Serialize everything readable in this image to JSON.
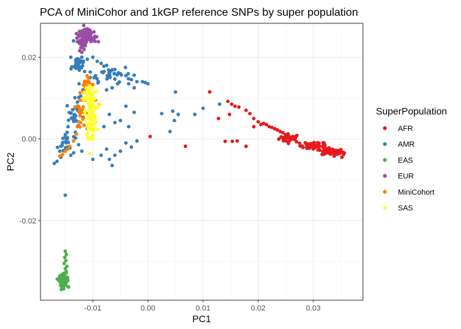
{
  "chart_data": {
    "type": "scatter",
    "title": "PCA of MiniCohor and 1kGP reference SNPs by super population",
    "xlabel": "PC1",
    "ylabel": "PC2",
    "xlim": [
      -0.0195,
      0.039
    ],
    "ylim": [
      -0.0395,
      0.0283
    ],
    "x_ticks": [
      -0.01,
      0.0,
      0.01,
      0.02,
      0.03
    ],
    "x_tick_labels": [
      "-0.01",
      "0.00",
      "0.01",
      "0.02",
      "0.03"
    ],
    "y_ticks": [
      -0.02,
      0.0,
      0.02
    ],
    "y_tick_labels": [
      "-0.02",
      "0.00",
      "0.02"
    ],
    "grid": true,
    "legend": {
      "title": "SuperPopulation",
      "position": "right"
    },
    "series": [
      {
        "name": "AFR",
        "color": "#e41a1c",
        "clusters": [
          {
            "cx": 0.0258,
            "cy": 0.0002,
            "sx": 0.001,
            "sy": 0.0005,
            "n": 30
          },
          {
            "cx": 0.03,
            "cy": -0.0017,
            "sx": 0.0012,
            "sy": 0.0005,
            "n": 40
          },
          {
            "cx": 0.0335,
            "cy": -0.0032,
            "sx": 0.001,
            "sy": 0.0004,
            "n": 60
          }
        ],
        "points": [
          [
            0.0112,
            0.0115
          ],
          [
            0.0145,
            0.0092
          ],
          [
            0.0152,
            0.0085
          ],
          [
            0.0158,
            0.008
          ],
          [
            0.0165,
            0.0078
          ],
          [
            0.0148,
            0.006
          ],
          [
            0.0178,
            0.007
          ],
          [
            0.0185,
            0.0062
          ],
          [
            0.0192,
            0.005
          ],
          [
            0.02,
            0.0042
          ],
          [
            0.021,
            0.0038
          ],
          [
            0.0215,
            0.0035
          ],
          [
            0.022,
            0.003
          ],
          [
            0.023,
            0.0025
          ],
          [
            0.0235,
            0.0022
          ],
          [
            0.024,
            0.0018
          ],
          [
            0.0245,
            0.0015
          ],
          [
            0.025,
            0.001
          ],
          [
            0.0192,
            0.003
          ],
          [
            0.0205,
            0.0035
          ],
          [
            0.0225,
            0.0028
          ],
          [
            0.0178,
            -0.0018
          ],
          [
            0.014,
            -0.0006
          ],
          [
            0.0153,
            -0.0006
          ],
          [
            0.0162,
            -0.0005
          ],
          [
            0.0068,
            -0.0018
          ],
          [
            0.0004,
            0.0006
          ],
          [
            0.0128,
            0.005
          ],
          [
            0.0338,
            -0.0042
          ],
          [
            0.0348,
            -0.003
          ],
          [
            0.0355,
            -0.0038
          ],
          [
            0.0352,
            -0.0045
          ]
        ]
      },
      {
        "name": "AMR",
        "color": "#377eb8",
        "clusters": [
          {
            "cx": -0.0125,
            "cy": 0.0185,
            "sx": 0.0006,
            "sy": 0.001,
            "n": 30
          },
          {
            "cx": -0.007,
            "cy": 0.016,
            "sx": 0.002,
            "sy": 0.001,
            "n": 30
          },
          {
            "cx": -0.0132,
            "cy": 0.006,
            "sx": 0.0008,
            "sy": 0.0018,
            "n": 25
          },
          {
            "cx": -0.0148,
            "cy": -0.001,
            "sx": 0.0008,
            "sy": 0.0015,
            "n": 25
          }
        ],
        "points": [
          [
            -0.012,
            0.02
          ],
          [
            -0.011,
            0.0195
          ],
          [
            -0.01,
            0.02
          ],
          [
            -0.0092,
            0.019
          ],
          [
            -0.0085,
            0.0185
          ],
          [
            -0.008,
            0.0178
          ],
          [
            -0.0075,
            0.018
          ],
          [
            -0.006,
            0.017
          ],
          [
            -0.005,
            0.016
          ],
          [
            -0.004,
            0.0155
          ],
          [
            -0.003,
            0.0145
          ],
          [
            -0.002,
            0.014
          ],
          [
            -0.001,
            0.014
          ],
          [
            -0.0005,
            0.0138
          ],
          [
            0.0,
            0.0135
          ],
          [
            -0.0035,
            0.0135
          ],
          [
            -0.0025,
            0.0125
          ],
          [
            -0.0055,
            0.0135
          ],
          [
            -0.0065,
            0.0125
          ],
          [
            -0.0075,
            0.012
          ],
          [
            -0.009,
            0.014
          ],
          [
            -0.0095,
            0.0155
          ],
          [
            -0.0105,
            0.015
          ],
          [
            -0.0115,
            0.0165
          ],
          [
            -0.0125,
            0.0135
          ],
          [
            -0.0118,
            0.012
          ],
          [
            -0.0122,
            0.0105
          ],
          [
            -0.0128,
            0.009
          ],
          [
            -0.0138,
            0.005
          ],
          [
            -0.0145,
            0.003
          ],
          [
            -0.015,
            0.001
          ],
          [
            -0.0155,
            -0.001
          ],
          [
            -0.016,
            -0.003
          ],
          [
            -0.0165,
            -0.0055
          ],
          [
            -0.017,
            -0.006
          ],
          [
            -0.0158,
            -0.0045
          ],
          [
            -0.014,
            -0.004
          ],
          [
            -0.012,
            -0.003
          ],
          [
            -0.01,
            -0.005
          ],
          [
            -0.0085,
            -0.004
          ],
          [
            -0.0075,
            -0.0025
          ],
          [
            -0.007,
            -0.005
          ],
          [
            -0.0065,
            -0.0065
          ],
          [
            -0.006,
            -0.004
          ],
          [
            -0.005,
            -0.003
          ],
          [
            -0.004,
            -0.001
          ],
          [
            -0.003,
            -0.002
          ],
          [
            -0.002,
            -0.0005
          ],
          [
            -0.006,
            0.004
          ],
          [
            -0.005,
            0.0045
          ],
          [
            -0.0035,
            0.003
          ],
          [
            -0.0025,
            0.0065
          ],
          [
            -0.004,
            0.008
          ],
          [
            -0.007,
            0.006
          ],
          [
            -0.008,
            0.003
          ],
          [
            0.005,
            0.0115
          ],
          [
            0.0045,
            0.0068
          ],
          [
            0.0055,
            0.006
          ],
          [
            0.0048,
            0.0045
          ],
          [
            0.004,
            0.0018
          ],
          [
            0.0025,
            0.0062
          ],
          [
            0.0085,
            0.006
          ],
          [
            0.01,
            0.0075
          ],
          [
            0.013,
            0.0085
          ],
          [
            -0.015,
            -0.0138
          ],
          [
            -0.0135,
            0.024
          ],
          [
            -0.014,
            0.02
          ],
          [
            -0.013,
            0.0175
          ]
        ]
      },
      {
        "name": "EAS",
        "color": "#4daf4a",
        "clusters": [
          {
            "cx": -0.0153,
            "cy": -0.0345,
            "sx": 0.0004,
            "sy": 0.0007,
            "n": 80
          }
        ],
        "points": [
          [
            -0.015,
            -0.0275
          ],
          [
            -0.0148,
            -0.0283
          ],
          [
            -0.0151,
            -0.029
          ],
          [
            -0.0149,
            -0.0298
          ],
          [
            -0.0152,
            -0.0305
          ],
          [
            -0.0147,
            -0.0312
          ],
          [
            -0.015,
            -0.0318
          ],
          [
            -0.0148,
            -0.0325
          ],
          [
            -0.0158,
            -0.036
          ],
          [
            -0.0145,
            -0.0362
          ],
          [
            -0.0153,
            -0.0367
          ],
          [
            -0.016,
            -0.034
          ]
        ]
      },
      {
        "name": "EUR",
        "color": "#984ea3",
        "clusters": [
          {
            "cx": -0.0113,
            "cy": 0.0258,
            "sx": 0.0008,
            "sy": 0.0006,
            "n": 60
          },
          {
            "cx": -0.0118,
            "cy": 0.0232,
            "sx": 0.0004,
            "sy": 0.0006,
            "n": 30
          },
          {
            "cx": -0.0105,
            "cy": 0.0245,
            "sx": 0.0006,
            "sy": 0.0004,
            "n": 20
          }
        ],
        "points": [
          [
            -0.0093,
            0.025
          ],
          [
            -0.009,
            0.0238
          ],
          [
            -0.0124,
            0.0216
          ],
          [
            -0.012,
            0.0212
          ],
          [
            -0.0116,
            0.0219
          ],
          [
            -0.0128,
            0.0238
          ],
          [
            -0.0098,
            0.0262
          ],
          [
            -0.0108,
            0.0268
          ]
        ]
      },
      {
        "name": "MiniCohort",
        "color": "#ff7f00",
        "clusters": [
          {
            "cx": -0.0112,
            "cy": 0.0125,
            "sx": 0.0005,
            "sy": 0.0012,
            "n": 22
          },
          {
            "cx": -0.0118,
            "cy": 0.006,
            "sx": 0.0005,
            "sy": 0.0018,
            "n": 18
          }
        ],
        "points": [
          [
            -0.0108,
            0.015
          ],
          [
            -0.0112,
            0.014
          ],
          [
            -0.0106,
            0.0135
          ],
          [
            -0.0095,
            0.0095
          ],
          [
            -0.0088,
            0.0085
          ],
          [
            -0.0122,
            0.004
          ],
          [
            -0.0128,
            0.003
          ],
          [
            -0.013,
            0.0012
          ],
          [
            -0.0135,
            -0.0005
          ],
          [
            -0.0145,
            -0.0025
          ],
          [
            -0.015,
            -0.003
          ],
          [
            -0.0155,
            -0.0038
          ],
          [
            -0.016,
            -0.0042
          ],
          [
            -0.0142,
            -0.0018
          ],
          [
            -0.0118,
            0.0095
          ],
          [
            -0.0125,
            0.0075
          ]
        ]
      },
      {
        "name": "SAS",
        "color": "#ffff33",
        "clusters": [
          {
            "cx": -0.0103,
            "cy": 0.0065,
            "sx": 0.0005,
            "sy": 0.0025,
            "n": 110
          },
          {
            "cx": -0.0108,
            "cy": 0.01,
            "sx": 0.0004,
            "sy": 0.0012,
            "n": 30
          }
        ],
        "points": [
          [
            -0.011,
            0.0005
          ],
          [
            -0.0108,
            0.0
          ],
          [
            -0.0104,
            -0.0002
          ],
          [
            -0.01,
            0.0002
          ],
          [
            -0.0112,
            0.0125
          ],
          [
            -0.0106,
            0.013
          ],
          [
            -0.0098,
            0.0115
          ]
        ]
      }
    ]
  }
}
